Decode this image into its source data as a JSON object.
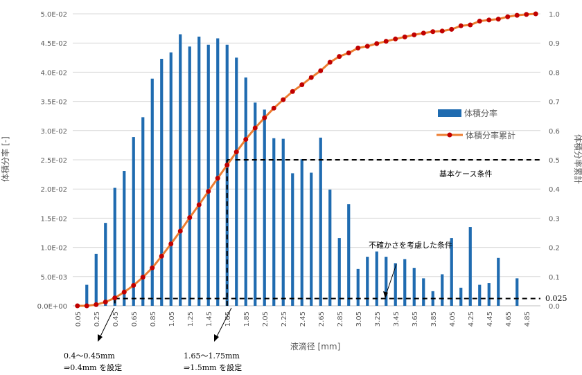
{
  "chart_data": {
    "type": "bar",
    "colors": {
      "bars": "#1f6bb0",
      "line": "#ed7d31",
      "marker": "#c00000",
      "guide": "#000000"
    },
    "xlabel": "液滴径 [mm]",
    "ylabel": "体積分率 [-]",
    "y2label": "体積分率累計",
    "ylim": [
      0,
      0.05
    ],
    "y2lim": [
      0,
      1.0
    ],
    "yticks": [
      "0.0E+00",
      "5.0E-03",
      "1.0E-02",
      "1.5E-02",
      "2.0E-02",
      "2.5E-02",
      "3.0E-02",
      "3.5E-02",
      "4.0E-02",
      "4.5E-02",
      "5.0E-02"
    ],
    "y2ticks": [
      "0.0",
      "0.1",
      "0.2",
      "0.3",
      "0.4",
      "0.5",
      "0.6",
      "0.7",
      "0.8",
      "0.9",
      "1.0"
    ],
    "grid": true,
    "legend_position": "right",
    "categories": [
      "0.05",
      "0.15",
      "0.25",
      "0.35",
      "0.45",
      "0.55",
      "0.65",
      "0.75",
      "0.85",
      "0.95",
      "1.05",
      "1.15",
      "1.25",
      "1.35",
      "1.45",
      "1.55",
      "1.65",
      "1.75",
      "1.85",
      "1.95",
      "2.05",
      "2.15",
      "2.25",
      "2.35",
      "2.45",
      "2.55",
      "2.65",
      "2.75",
      "2.85",
      "2.95",
      "3.05",
      "3.15",
      "3.25",
      "3.35",
      "3.45",
      "3.55",
      "3.65",
      "3.75",
      "3.85",
      "3.95",
      "4.05",
      "4.15",
      "4.25",
      "4.35",
      "4.45",
      "4.55",
      "4.65",
      "4.75",
      "4.85",
      "4.95"
    ],
    "tick_labels": [
      "0.05",
      "0.25",
      "0.45",
      "0.65",
      "0.85",
      "1.05",
      "1.25",
      "1.45",
      "1.65",
      "1.85",
      "2.05",
      "2.25",
      "2.45",
      "2.65",
      "2.85",
      "3.05",
      "3.25",
      "3.45",
      "3.65",
      "3.85",
      "4.05",
      "4.25",
      "4.45",
      "4.65",
      "4.85"
    ],
    "series": [
      {
        "name": "体積分率",
        "type": "bar",
        "axis": "left",
        "values": [
          0,
          0.0036,
          0.0089,
          0.0142,
          0.0202,
          0.0231,
          0.0289,
          0.0323,
          0.0389,
          0.0423,
          0.0434,
          0.0465,
          0.0444,
          0.0461,
          0.0447,
          0.0458,
          0.0447,
          0.0425,
          0.0391,
          0.0348,
          0.0336,
          0.0287,
          0.0286,
          0.0227,
          0.0251,
          0.0228,
          0.0288,
          0.0199,
          0.0116,
          0.0174,
          0.0063,
          0.0084,
          0.0093,
          0.0084,
          0.0073,
          0.008,
          0.0065,
          0.0047,
          0.0025,
          0.0054,
          0.0116,
          0.0031,
          0.0135,
          0.0036,
          0.0039,
          0.0082,
          0,
          0.0047,
          0,
          0
        ]
      },
      {
        "name": "体積分率累計",
        "type": "line",
        "axis": "right",
        "values": [
          0,
          0,
          0.004,
          0.013,
          0.027,
          0.047,
          0.07,
          0.098,
          0.13,
          0.17,
          0.212,
          0.256,
          0.302,
          0.346,
          0.392,
          0.437,
          0.482,
          0.527,
          0.57,
          0.609,
          0.644,
          0.677,
          0.706,
          0.734,
          0.757,
          0.782,
          0.805,
          0.834,
          0.854,
          0.866,
          0.883,
          0.889,
          0.898,
          0.906,
          0.914,
          0.921,
          0.928,
          0.934,
          0.939,
          0.941,
          0.947,
          0.959,
          0.962,
          0.975,
          0.979,
          0.982,
          0.99,
          0.995,
          0.998,
          1.0
        ]
      }
    ],
    "guides": {
      "base_case_level": 0.5,
      "base_case_x": 1.65,
      "uncertainty_level": 0.025,
      "uncertainty_x": 0.45
    },
    "annotations": {
      "base_case": "基本ケース条件",
      "uncertainty": "不確かさを考慮した条件",
      "level_label": "0.025",
      "note_left_line1": "0.4～0.45mm",
      "note_left_line2": "⇒0.4mm を設定",
      "note_right_line1": "1.65～1.75mm",
      "note_right_line2": "⇒1.5mm を設定"
    }
  }
}
